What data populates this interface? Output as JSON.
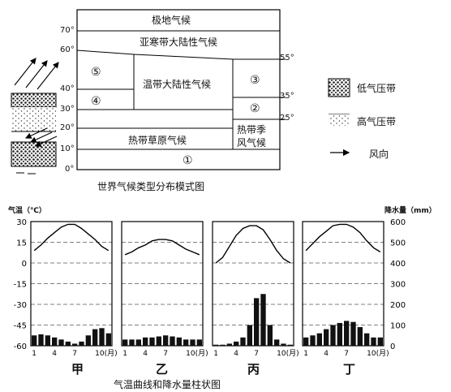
{
  "top_diagram": {
    "caption": "世界气候类型分布模式图",
    "zones": {
      "polar": "极地气候",
      "subarctic": "亚寒带大陆性气候",
      "temperate_continental": "温带大陆性气候",
      "tropical_grassland": "热带草原气候",
      "tropical_monsoon_line1": "热带季",
      "tropical_monsoon_line2": "风气候"
    },
    "circled": [
      "⑤",
      "④",
      "③",
      "②",
      "①"
    ],
    "left_lat": [
      "70°",
      "60°",
      "40°",
      "30°",
      "20°",
      "10°",
      "0°"
    ],
    "right_lat": [
      "55°",
      "35°",
      "25°"
    ]
  },
  "legend": {
    "low_pressure": "低气压带",
    "high_pressure": "高气压带",
    "wind": "风向"
  },
  "climate_chart": {
    "caption": "气温曲线和降水量柱状图",
    "temp_axis_title": "气温（℃）",
    "precip_axis_title": "降水量（mm）",
    "temp_ticks": [
      "30",
      "15",
      "0",
      "-15",
      "-30",
      "-45",
      "-60"
    ],
    "precip_ticks": [
      "600",
      "500",
      "400",
      "300",
      "200",
      "100",
      "0"
    ],
    "month_ticks": [
      "1",
      "4",
      "7",
      "10(月)"
    ],
    "panels": [
      "甲",
      "乙",
      "丙",
      "丁"
    ]
  },
  "chart_data": [
    {
      "type": "line+bar",
      "name": "甲",
      "x": [
        1,
        2,
        3,
        4,
        5,
        6,
        7,
        8,
        9,
        10,
        11,
        12
      ],
      "temperature_c": [
        9,
        13,
        18,
        22,
        26,
        28,
        28,
        25,
        21,
        17,
        12,
        9
      ],
      "precipitation_mm": [
        50,
        55,
        50,
        40,
        30,
        20,
        10,
        20,
        50,
        80,
        85,
        60
      ],
      "ylim_temp": [
        -60,
        30
      ],
      "ylim_precip": [
        0,
        600
      ]
    },
    {
      "type": "line+bar",
      "name": "乙",
      "x": [
        1,
        2,
        3,
        4,
        5,
        6,
        7,
        8,
        9,
        10,
        11,
        12
      ],
      "temperature_c": [
        6,
        8,
        11,
        13,
        16,
        17,
        17,
        16,
        13,
        10,
        8,
        6
      ],
      "precipitation_mm": [
        30,
        30,
        30,
        40,
        40,
        45,
        50,
        45,
        40,
        30,
        30,
        30
      ],
      "ylim_temp": [
        -60,
        30
      ],
      "ylim_precip": [
        0,
        600
      ]
    },
    {
      "type": "line+bar",
      "name": "丙",
      "x": [
        1,
        2,
        3,
        4,
        5,
        6,
        7,
        8,
        9,
        10,
        11,
        12
      ],
      "temperature_c": [
        0,
        4,
        12,
        20,
        25,
        27,
        27,
        24,
        17,
        9,
        3,
        0
      ],
      "precipitation_mm": [
        5,
        5,
        10,
        20,
        40,
        100,
        230,
        250,
        100,
        30,
        10,
        5
      ],
      "ylim_temp": [
        -60,
        30
      ],
      "ylim_precip": [
        0,
        600
      ]
    },
    {
      "type": "line+bar",
      "name": "丁",
      "x": [
        1,
        2,
        3,
        4,
        5,
        6,
        7,
        8,
        9,
        10,
        11,
        12
      ],
      "temperature_c": [
        9,
        14,
        19,
        23,
        27,
        28,
        28,
        26,
        22,
        16,
        11,
        8
      ],
      "precipitation_mm": [
        40,
        50,
        60,
        80,
        100,
        110,
        120,
        115,
        90,
        60,
        40,
        40
      ],
      "ylim_temp": [
        -60,
        30
      ],
      "ylim_precip": [
        0,
        600
      ]
    }
  ]
}
